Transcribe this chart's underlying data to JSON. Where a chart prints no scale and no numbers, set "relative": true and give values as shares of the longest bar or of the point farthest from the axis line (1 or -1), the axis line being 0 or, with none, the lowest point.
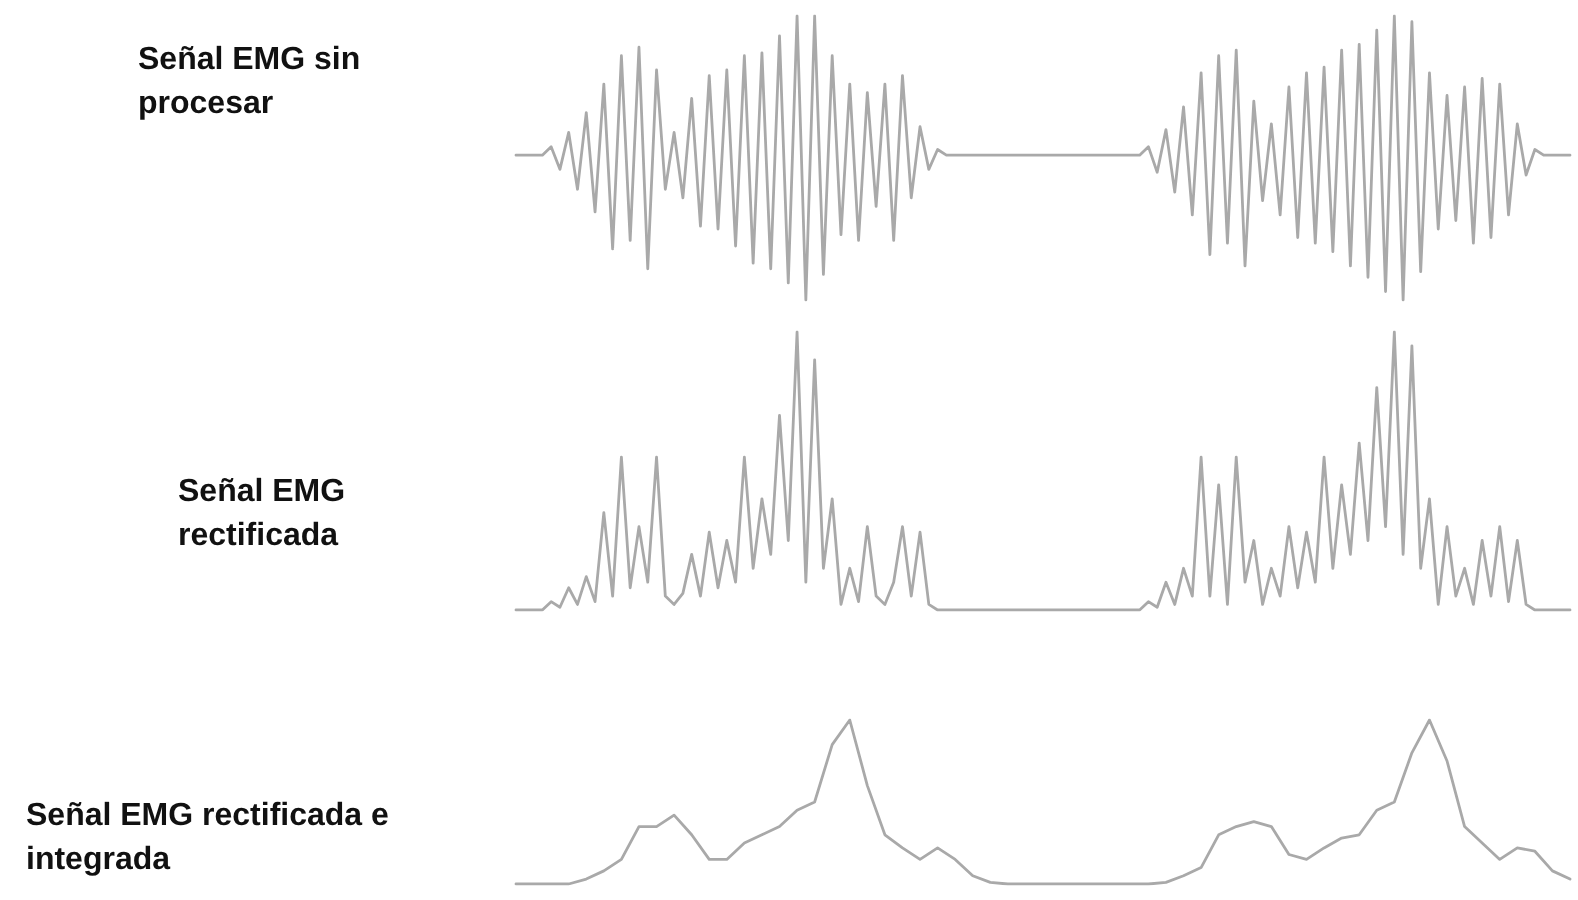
{
  "chart_data": [
    {
      "type": "line",
      "title": "Señal EMG sin procesar",
      "relative": true,
      "categories": [
        null,
        null,
        null,
        null,
        null,
        null,
        null,
        null,
        null,
        null,
        null,
        null,
        null,
        null,
        null,
        null,
        null,
        null,
        null,
        null,
        null,
        null,
        null,
        null,
        null,
        null,
        null,
        null,
        null,
        null,
        null,
        null,
        null,
        null,
        null,
        null,
        null,
        null,
        null,
        null,
        null,
        null,
        null,
        null,
        null,
        null,
        null,
        null,
        null,
        null,
        null,
        null,
        null,
        null,
        null,
        null,
        null,
        null,
        null,
        null,
        null,
        null,
        null,
        null,
        null,
        null,
        null,
        null,
        null,
        null,
        null,
        null,
        null,
        null,
        null,
        null,
        null,
        null,
        null,
        null,
        null,
        null,
        null,
        null,
        null,
        null,
        null,
        null,
        null,
        null,
        null,
        null,
        null,
        null,
        null,
        null,
        null,
        null,
        null,
        null,
        null,
        null,
        null,
        null,
        null,
        null,
        null,
        null,
        null,
        null,
        null,
        null,
        null,
        null,
        null,
        null,
        null,
        null,
        null,
        null,
        null
      ],
      "series": [
        {
          "color": "#a9a9a9",
          "values": [
            0.51,
            0.51,
            0.51,
            0.51,
            0.54,
            0.46,
            0.59,
            0.39,
            0.66,
            0.31,
            0.76,
            0.18,
            0.86,
            0.21,
            0.89,
            0.11,
            0.81,
            0.39,
            0.59,
            0.36,
            0.71,
            0.26,
            0.79,
            0.25,
            0.81,
            0.19,
            0.86,
            0.13,
            0.87,
            0.11,
            0.93,
            0.06,
            1.0,
            0.0,
            1.0,
            0.09,
            0.86,
            0.23,
            0.76,
            0.21,
            0.73,
            0.33,
            0.76,
            0.21,
            0.79,
            0.36,
            0.61,
            0.46,
            0.53,
            0.51,
            0.51,
            0.51,
            0.51,
            0.51,
            0.51,
            0.51,
            0.51,
            0.51,
            0.51,
            0.51,
            0.51,
            0.51,
            0.51,
            0.51,
            0.51,
            0.51,
            0.51,
            0.51,
            0.51,
            0.51,
            0.51,
            0.51,
            0.54,
            0.45,
            0.6,
            0.38,
            0.68,
            0.3,
            0.8,
            0.16,
            0.86,
            0.2,
            0.88,
            0.12,
            0.7,
            0.35,
            0.62,
            0.3,
            0.75,
            0.22,
            0.8,
            0.2,
            0.82,
            0.17,
            0.88,
            0.12,
            0.9,
            0.08,
            0.95,
            0.03,
            1.0,
            0.0,
            0.98,
            0.1,
            0.8,
            0.25,
            0.72,
            0.28,
            0.75,
            0.2,
            0.78,
            0.22,
            0.76,
            0.3,
            0.62,
            0.44,
            0.53,
            0.51,
            0.51,
            0.51,
            0.51
          ]
        }
      ]
    },
    {
      "type": "line",
      "title": "Señal EMG rectificada",
      "relative": true,
      "categories": [
        null,
        null,
        null,
        null,
        null,
        null,
        null,
        null,
        null,
        null,
        null,
        null,
        null,
        null,
        null,
        null,
        null,
        null,
        null,
        null,
        null,
        null,
        null,
        null,
        null,
        null,
        null,
        null,
        null,
        null,
        null,
        null,
        null,
        null,
        null,
        null,
        null,
        null,
        null,
        null,
        null,
        null,
        null,
        null,
        null,
        null,
        null,
        null,
        null,
        null,
        null,
        null,
        null,
        null,
        null,
        null,
        null,
        null,
        null,
        null,
        null,
        null,
        null,
        null,
        null,
        null,
        null,
        null,
        null,
        null,
        null,
        null,
        null,
        null,
        null,
        null,
        null,
        null,
        null,
        null,
        null,
        null,
        null,
        null,
        null,
        null,
        null,
        null,
        null,
        null,
        null,
        null,
        null,
        null,
        null,
        null,
        null,
        null,
        null,
        null,
        null,
        null,
        null,
        null,
        null,
        null,
        null,
        null,
        null,
        null,
        null,
        null,
        null,
        null,
        null,
        null,
        null,
        null,
        null,
        null,
        null
      ],
      "series": [
        {
          "color": "#a9a9a9",
          "values": [
            0,
            0,
            0,
            0,
            0.03,
            0.01,
            0.08,
            0.02,
            0.12,
            0.03,
            0.35,
            0.05,
            0.55,
            0.08,
            0.3,
            0.1,
            0.55,
            0.05,
            0.02,
            0.06,
            0.2,
            0.05,
            0.28,
            0.08,
            0.25,
            0.1,
            0.55,
            0.15,
            0.4,
            0.2,
            0.7,
            0.25,
            1.0,
            0.1,
            0.9,
            0.15,
            0.4,
            0.02,
            0.15,
            0.03,
            0.3,
            0.05,
            0.02,
            0.1,
            0.3,
            0.05,
            0.28,
            0.02,
            0.0,
            0,
            0,
            0,
            0,
            0,
            0,
            0,
            0,
            0,
            0,
            0,
            0,
            0,
            0,
            0,
            0,
            0,
            0,
            0,
            0,
            0,
            0,
            0,
            0.03,
            0.01,
            0.1,
            0.02,
            0.15,
            0.05,
            0.55,
            0.05,
            0.45,
            0.02,
            0.55,
            0.1,
            0.25,
            0.02,
            0.15,
            0.05,
            0.3,
            0.08,
            0.28,
            0.1,
            0.55,
            0.15,
            0.45,
            0.2,
            0.6,
            0.25,
            0.8,
            0.3,
            1.0,
            0.2,
            0.95,
            0.15,
            0.4,
            0.02,
            0.3,
            0.05,
            0.15,
            0.02,
            0.25,
            0.05,
            0.3,
            0.03,
            0.25,
            0.02,
            0.0,
            0,
            0,
            0,
            0
          ]
        }
      ]
    },
    {
      "type": "line",
      "title": "Señal EMG rectificada e integrada",
      "relative": true,
      "categories": [
        null,
        null,
        null,
        null,
        null,
        null,
        null,
        null,
        null,
        null,
        null,
        null,
        null,
        null,
        null,
        null,
        null,
        null,
        null,
        null,
        null,
        null,
        null,
        null,
        null,
        null,
        null,
        null,
        null,
        null,
        null,
        null,
        null,
        null,
        null,
        null,
        null,
        null,
        null,
        null,
        null,
        null,
        null,
        null,
        null,
        null,
        null,
        null,
        null,
        null,
        null,
        null,
        null,
        null,
        null,
        null,
        null,
        null,
        null,
        null,
        null
      ],
      "series": [
        {
          "color": "#a9a9a9",
          "values": [
            0,
            0,
            0,
            0,
            0.03,
            0.08,
            0.15,
            0.35,
            0.35,
            0.42,
            0.3,
            0.15,
            0.15,
            0.25,
            0.3,
            0.35,
            0.45,
            0.5,
            0.85,
            1.0,
            0.6,
            0.3,
            0.22,
            0.15,
            0.22,
            0.15,
            0.05,
            0.01,
            0,
            0,
            0,
            0,
            0,
            0,
            0,
            0,
            0,
            0.01,
            0.05,
            0.1,
            0.3,
            0.35,
            0.38,
            0.35,
            0.18,
            0.15,
            0.22,
            0.28,
            0.3,
            0.45,
            0.5,
            0.8,
            1.0,
            0.75,
            0.35,
            0.25,
            0.15,
            0.22,
            0.2,
            0.08,
            0.03
          ]
        }
      ]
    }
  ]
}
